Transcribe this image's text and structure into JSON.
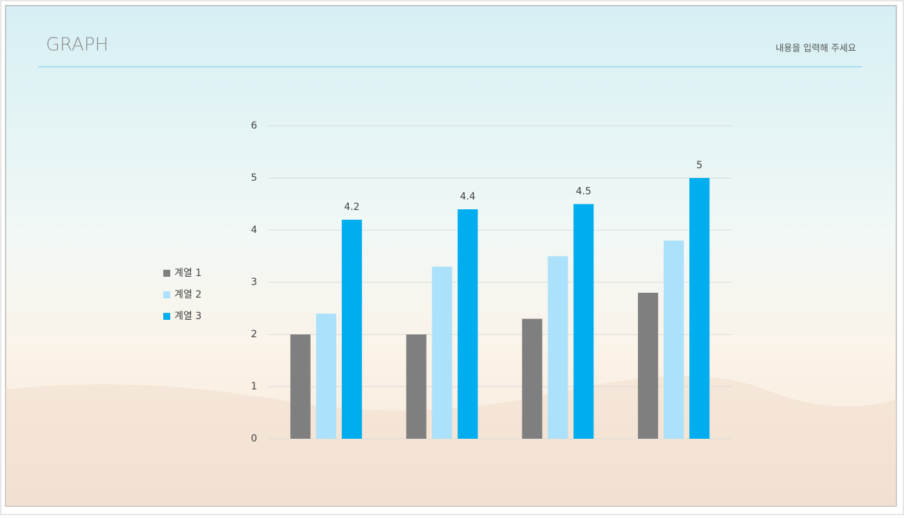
{
  "chart_data": {
    "type": "bar",
    "title": "GRAPH",
    "subtitle": "내용을 입력해 주세요",
    "categories": [
      null,
      null,
      null,
      null
    ],
    "series": [
      {
        "name": "계열 1",
        "color": "#7f7f7f",
        "values": [
          2,
          2,
          2.3,
          2.8
        ],
        "show_labels": false
      },
      {
        "name": "계열 2",
        "color": "#abe1fa",
        "values": [
          2.4,
          3.3,
          3.5,
          3.8
        ],
        "show_labels": false
      },
      {
        "name": "계열 3",
        "color": "#00aeef",
        "values": [
          4.2,
          4.4,
          4.5,
          5
        ],
        "show_labels": true
      }
    ],
    "ylim": [
      0,
      6
    ],
    "yticks": [
      0,
      1,
      2,
      3,
      4,
      5,
      6
    ],
    "grid": true,
    "legend": "left"
  }
}
